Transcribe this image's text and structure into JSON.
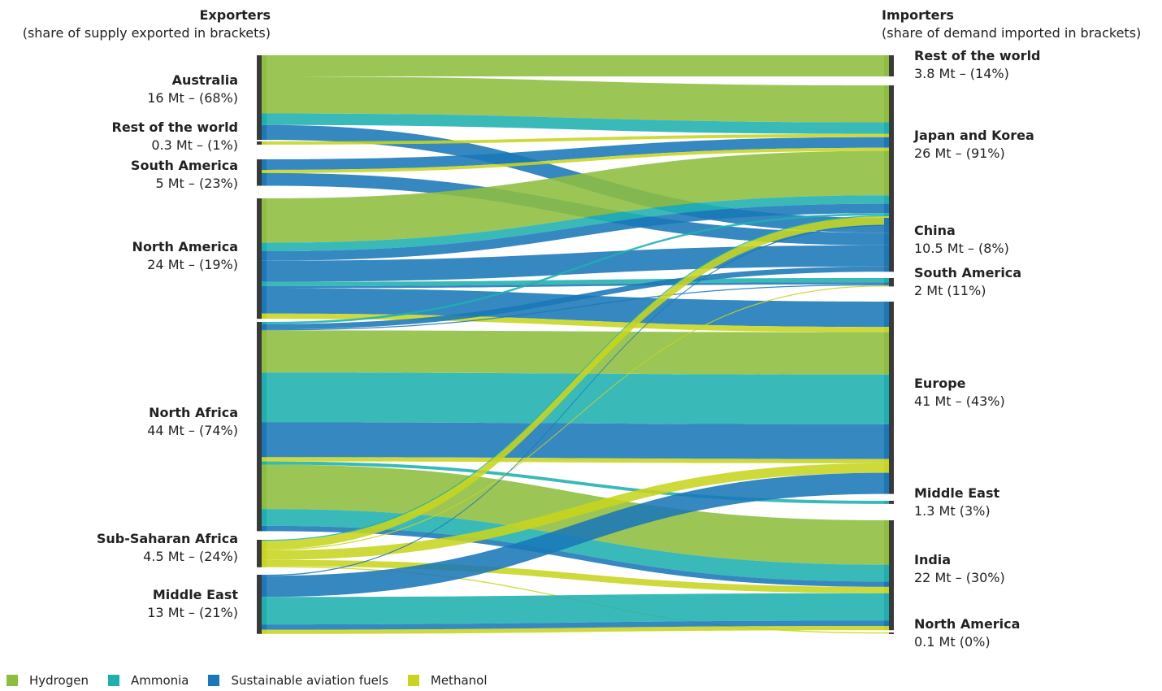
{
  "headers": {
    "exporters_title": "Exporters",
    "exporters_sub": "(share of supply exported in brackets)",
    "importers_title": "Importers",
    "importers_sub": "(share of demand imported in brackets)"
  },
  "colors": {
    "hydrogen": "#8DBE3F",
    "ammonia": "#1FAFAF",
    "saf": "#1A78B7",
    "methanol": "#C7D51E",
    "node_bar": "#3A3A3A"
  },
  "legend": [
    {
      "key": "hydrogen",
      "label": "Hydrogen"
    },
    {
      "key": "ammonia",
      "label": "Ammonia"
    },
    {
      "key": "saf",
      "label": "Sustainable aviation fuels"
    },
    {
      "key": "methanol",
      "label": "Methanol"
    }
  ],
  "exporters": [
    {
      "name": "Australia",
      "value": "16 Mt – (68%)"
    },
    {
      "name": "Rest of the world",
      "value": "0.3 Mt – (1%)"
    },
    {
      "name": "South America",
      "value": "5 Mt – (23%)"
    },
    {
      "name": "North America",
      "value": "24 Mt – (19%)"
    },
    {
      "name": "North Africa",
      "value": "44 Mt – (74%)"
    },
    {
      "name": "Sub-Saharan Africa",
      "value": "4.5 Mt – (24%)"
    },
    {
      "name": "Middle East",
      "value": "13 Mt – (21%)"
    }
  ],
  "importers": [
    {
      "name": "Rest of the world",
      "value": "3.8 Mt – (14%)"
    },
    {
      "name": "Japan and Korea",
      "value": "26 Mt – (91%)"
    },
    {
      "name": "China",
      "value": "10.5 Mt – (8%)"
    },
    {
      "name": "South America",
      "value": "2 Mt (11%)"
    },
    {
      "name": "Europe",
      "value": "41 Mt – (43%)"
    },
    {
      "name": "Middle East",
      "value": "1.3 Mt (3%)"
    },
    {
      "name": "India",
      "value": "22 Mt – (30%)"
    },
    {
      "name": "North America",
      "value": "0.1 Mt (0%)"
    }
  ],
  "flows": [
    {
      "from": 0,
      "to": 0,
      "fuel": "hydrogen",
      "value": 2.0
    },
    {
      "from": 0,
      "to": 1,
      "fuel": "hydrogen",
      "value": 3.5
    },
    {
      "from": 0,
      "to": 1,
      "fuel": "ammonia",
      "value": 1.1
    },
    {
      "from": 0,
      "to": 2,
      "fuel": "saf",
      "value": 1.4
    },
    {
      "from": 1,
      "to": 1,
      "fuel": "methanol",
      "value": 0.3
    },
    {
      "from": 2,
      "to": 1,
      "fuel": "saf",
      "value": 1.0
    },
    {
      "from": 2,
      "to": 1,
      "fuel": "methanol",
      "value": 0.3
    },
    {
      "from": 2,
      "to": 2,
      "fuel": "saf",
      "value": 1.2
    },
    {
      "from": 3,
      "to": 1,
      "fuel": "hydrogen",
      "value": 4.2
    },
    {
      "from": 3,
      "to": 1,
      "fuel": "ammonia",
      "value": 0.8
    },
    {
      "from": 3,
      "to": 1,
      "fuel": "saf",
      "value": 0.9
    },
    {
      "from": 3,
      "to": 2,
      "fuel": "saf",
      "value": 2.0
    },
    {
      "from": 3,
      "to": 3,
      "fuel": "ammonia",
      "value": 0.4
    },
    {
      "from": 3,
      "to": 3,
      "fuel": "saf",
      "value": 0.2
    },
    {
      "from": 3,
      "to": 4,
      "fuel": "saf",
      "value": 2.4
    },
    {
      "from": 3,
      "to": 4,
      "fuel": "methanol",
      "value": 0.5
    },
    {
      "from": 4,
      "to": 1,
      "fuel": "ammonia",
      "value": 0.2
    },
    {
      "from": 4,
      "to": 2,
      "fuel": "saf",
      "value": 0.5
    },
    {
      "from": 4,
      "to": 3,
      "fuel": "saf",
      "value": 0.1
    },
    {
      "from": 4,
      "to": 4,
      "fuel": "hydrogen",
      "value": 4.0
    },
    {
      "from": 4,
      "to": 4,
      "fuel": "ammonia",
      "value": 4.7
    },
    {
      "from": 4,
      "to": 4,
      "fuel": "saf",
      "value": 3.3
    },
    {
      "from": 4,
      "to": 4,
      "fuel": "methanol",
      "value": 0.4
    },
    {
      "from": 4,
      "to": 5,
      "fuel": "ammonia",
      "value": 0.3
    },
    {
      "from": 4,
      "to": 6,
      "fuel": "hydrogen",
      "value": 4.2
    },
    {
      "from": 4,
      "to": 6,
      "fuel": "ammonia",
      "value": 1.6
    },
    {
      "from": 4,
      "to": 6,
      "fuel": "saf",
      "value": 0.5
    },
    {
      "from": 5,
      "to": 1,
      "fuel": "methanol",
      "value": 0.8
    },
    {
      "from": 5,
      "to": 1,
      "fuel": "ammonia",
      "value": 0.1
    },
    {
      "from": 5,
      "to": 3,
      "fuel": "methanol",
      "value": 0.1
    },
    {
      "from": 5,
      "to": 4,
      "fuel": "methanol",
      "value": 0.9
    },
    {
      "from": 5,
      "to": 6,
      "fuel": "methanol",
      "value": 0.6
    },
    {
      "from": 5,
      "to": 7,
      "fuel": "methanol",
      "value": 0.1
    },
    {
      "from": 6,
      "to": 1,
      "fuel": "saf",
      "value": 0.1
    },
    {
      "from": 6,
      "to": 4,
      "fuel": "saf",
      "value": 2.0
    },
    {
      "from": 6,
      "to": 6,
      "fuel": "methanol",
      "value": 0.4
    },
    {
      "from": 6,
      "to": 6,
      "fuel": "ammonia",
      "value": 2.6
    },
    {
      "from": 6,
      "to": 6,
      "fuel": "saf",
      "value": 0.5
    }
  ]
}
